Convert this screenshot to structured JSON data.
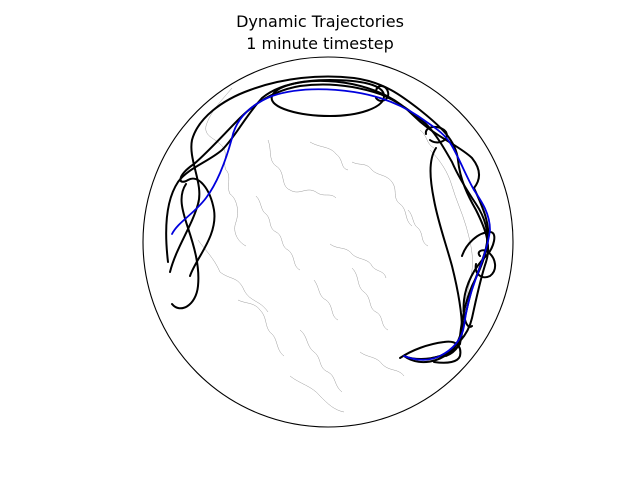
{
  "figure": {
    "title_line1": "Dynamic Trajectories",
    "title_line2": "1 minute timestep"
  },
  "map": {
    "projection": "orthographic",
    "coastline_color": "#9a9a9a",
    "globe_outline_color": "#000000"
  },
  "legend": {
    "trajectory_colors": {
      "ensemble": "#000000",
      "highlight": "#0000dd"
    }
  }
}
